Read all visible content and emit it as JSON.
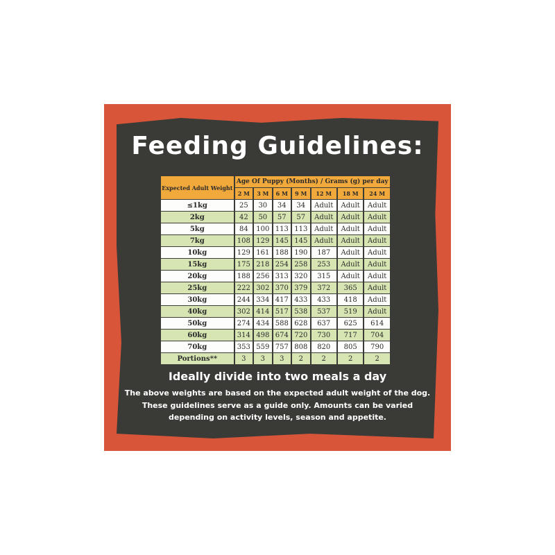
{
  "title": "Feeding Guidelines:",
  "table": {
    "corner_label": "Expected Adult Weight",
    "group_header": "Age Of Puppy (Months) / Grams (g) per day",
    "columns": [
      "2 M",
      "3 M",
      "6 M",
      "9 M",
      "12 M",
      "18 M",
      "24 M"
    ],
    "rows": [
      {
        "label": "≤1kg",
        "values": [
          "25",
          "30",
          "34",
          "34",
          "Adult",
          "Adult",
          "Adult"
        ]
      },
      {
        "label": "2kg",
        "values": [
          "42",
          "50",
          "57",
          "57",
          "Adult",
          "Adult",
          "Adult"
        ]
      },
      {
        "label": "5kg",
        "values": [
          "84",
          "100",
          "113",
          "113",
          "Adult",
          "Adult",
          "Adult"
        ]
      },
      {
        "label": "7kg",
        "values": [
          "108",
          "129",
          "145",
          "145",
          "Adult",
          "Adult",
          "Adult"
        ]
      },
      {
        "label": "10kg",
        "values": [
          "129",
          "161",
          "188",
          "190",
          "187",
          "Adult",
          "Adult"
        ]
      },
      {
        "label": "15kg",
        "values": [
          "175",
          "218",
          "254",
          "258",
          "253",
          "Adult",
          "Adult"
        ]
      },
      {
        "label": "20kg",
        "values": [
          "188",
          "256",
          "313",
          "320",
          "315",
          "Adult",
          "Adult"
        ]
      },
      {
        "label": "25kg",
        "values": [
          "222",
          "302",
          "370",
          "379",
          "372",
          "365",
          "Adult"
        ]
      },
      {
        "label": "30kg",
        "values": [
          "244",
          "334",
          "417",
          "433",
          "433",
          "418",
          "Adult"
        ]
      },
      {
        "label": "40kg",
        "values": [
          "302",
          "414",
          "517",
          "538",
          "537",
          "519",
          "Adult"
        ]
      },
      {
        "label": "50kg",
        "values": [
          "274",
          "434",
          "588",
          "628",
          "637",
          "625",
          "614"
        ]
      },
      {
        "label": "60kg",
        "values": [
          "314",
          "498",
          "674",
          "720",
          "730",
          "717",
          "704"
        ]
      },
      {
        "label": "70kg",
        "values": [
          "353",
          "559",
          "757",
          "808",
          "820",
          "805",
          "790"
        ]
      },
      {
        "label": "Portions**",
        "values": [
          "3",
          "3",
          "3",
          "2",
          "2",
          "2",
          "2"
        ]
      }
    ]
  },
  "subtitle": "Ideally divide into two meals a day",
  "note": [
    "The above weights are based on the expected adult weight of the dog.",
    "These guidelines serve as a guide only. Amounts can be varied",
    "depending on activity levels, season and appetite."
  ],
  "colors": {
    "frame": "#d8553a",
    "board": "#3a3b37",
    "header": "#f2a93b",
    "row_alt": "#d6e5b2"
  }
}
